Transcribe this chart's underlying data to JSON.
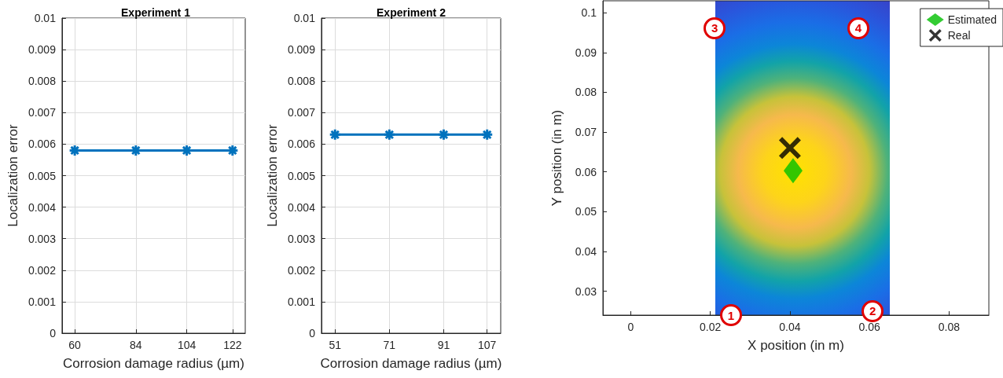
{
  "chart_data": [
    {
      "type": "line",
      "title": "Experiment 1",
      "xlabel": "Corrosion damage radius (µm)",
      "ylabel": "Localization error",
      "x": [
        60,
        84,
        104,
        122
      ],
      "series": [
        {
          "color": "#0072bd",
          "values": [
            0.0058,
            0.0058,
            0.0058,
            0.0058
          ]
        }
      ],
      "xlim": [
        55,
        127
      ],
      "xticks": [
        60,
        84,
        104,
        122
      ],
      "ylim": [
        0,
        0.01
      ],
      "yticks": [
        0,
        0.001,
        0.002,
        0.003,
        0.004,
        0.005,
        0.006,
        0.007,
        0.008,
        0.009,
        0.01
      ],
      "grid": true,
      "marker": "cross",
      "line_style": "solid"
    },
    {
      "type": "line",
      "title": "Experiment 2",
      "xlabel": "Corrosion damage radius (µm)",
      "ylabel": "Localization error",
      "x": [
        51,
        71,
        91,
        107
      ],
      "series": [
        {
          "color": "#0072bd",
          "values": [
            0.0063,
            0.0063,
            0.0063,
            0.0063
          ]
        }
      ],
      "xlim": [
        46,
        112
      ],
      "xticks": [
        51,
        71,
        91,
        107
      ],
      "ylim": [
        0,
        0.01
      ],
      "yticks": [
        0,
        0.001,
        0.002,
        0.003,
        0.004,
        0.005,
        0.006,
        0.007,
        0.008,
        0.009,
        0.01
      ],
      "grid": true,
      "marker": "cross",
      "line_style": "solid"
    },
    {
      "type": "scatter",
      "xlabel": "X position (in m)",
      "ylabel": "Y position (in m)",
      "series": [
        {
          "name": "Estimated",
          "color": "#00bf00",
          "marker": "diamond",
          "x": [
            0.0408
          ],
          "values": [
            0.0603
          ]
        },
        {
          "name": "Real",
          "color": "#000000",
          "marker": "cross",
          "x": [
            0.04
          ],
          "values": [
            0.066
          ]
        }
      ],
      "xlim": [
        -0.007,
        0.09
      ],
      "xticks": [
        0,
        0.02,
        0.04,
        0.06,
        0.08
      ],
      "ylim": [
        0.024,
        0.103
      ],
      "yticks": [
        0.03,
        0.04,
        0.05,
        0.06,
        0.07,
        0.08,
        0.09,
        0.1
      ],
      "legend": "top right",
      "annotations": [
        {
          "text": "1",
          "x": 0.0252,
          "y": 0.024
        },
        {
          "text": "2",
          "x": 0.0608,
          "y": 0.025
        },
        {
          "text": "3",
          "x": 0.0211,
          "y": 0.0961
        },
        {
          "text": "4",
          "x": 0.0572,
          "y": 0.0961
        }
      ]
    }
  ]
}
